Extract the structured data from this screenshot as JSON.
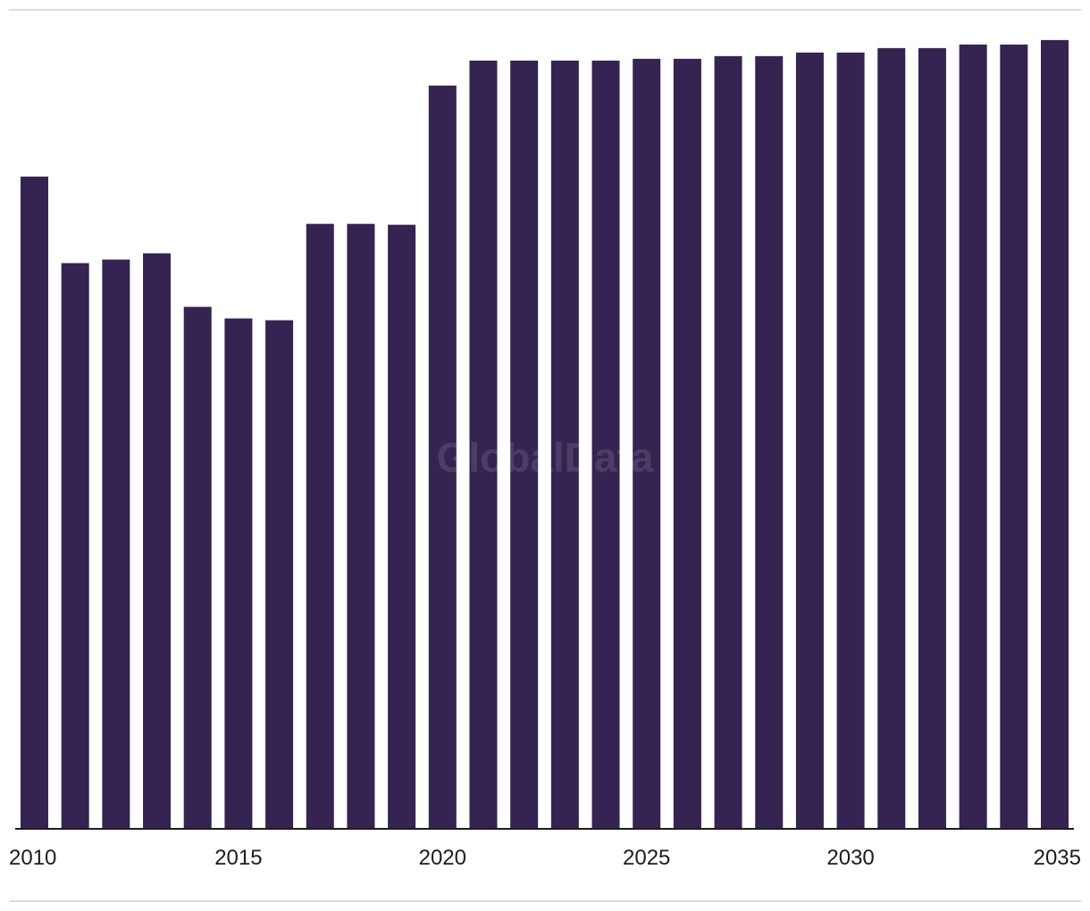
{
  "chart_data": {
    "type": "bar",
    "title": "",
    "xlabel": "",
    "ylabel": "",
    "categories": [
      "2010",
      "2011",
      "2012",
      "2013",
      "2014",
      "2015",
      "2016",
      "2017",
      "2018",
      "2019",
      "2020",
      "2021",
      "2022",
      "2023",
      "2024",
      "2025",
      "2026",
      "2027",
      "2028",
      "2029",
      "2030",
      "2031",
      "2032",
      "2033",
      "2034",
      "2035"
    ],
    "values": [
      731,
      634,
      638,
      645,
      585,
      572,
      570,
      678,
      678,
      677,
      833,
      861,
      861,
      861,
      861,
      863,
      863,
      866,
      866,
      870,
      870,
      875,
      875,
      879,
      879,
      884
    ],
    "tick_labels": [
      "2010",
      "2015",
      "2020",
      "2025",
      "2030",
      "2035"
    ],
    "ylim": [
      0,
      900
    ],
    "grid": false,
    "legend": "none",
    "bar_color": "#352351",
    "axis_color": "#1c1c1c",
    "rule_color": "#dcdcdc",
    "watermark": "GlobalData"
  }
}
